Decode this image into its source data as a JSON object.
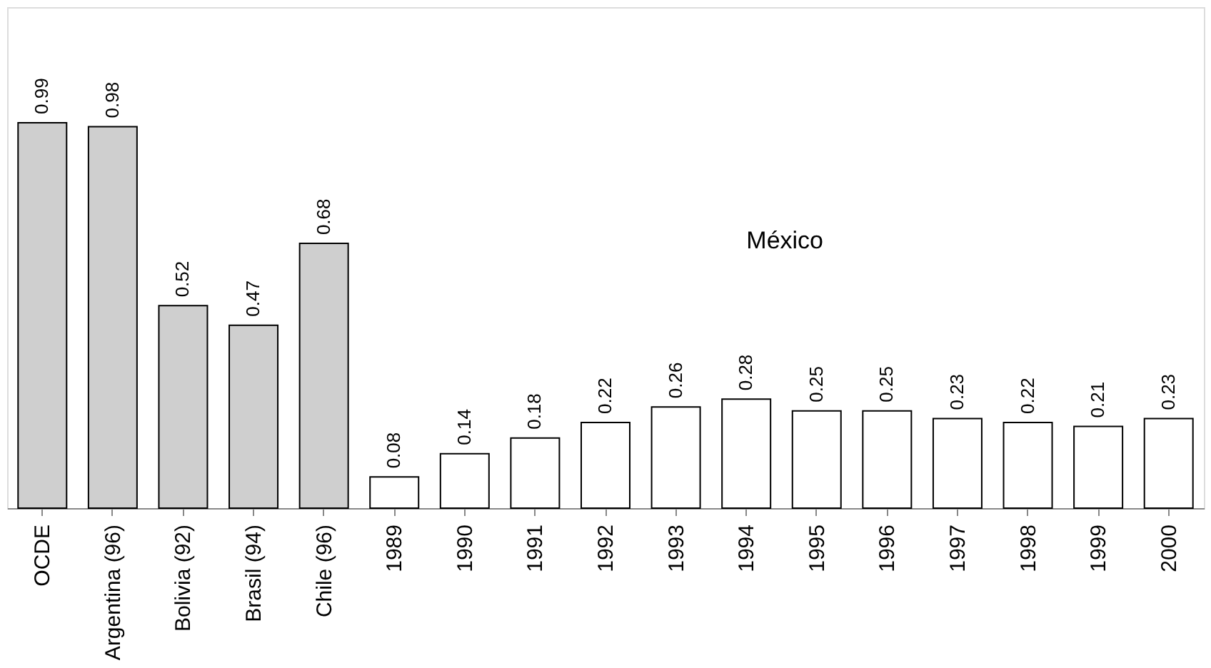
{
  "chart_data": {
    "type": "bar",
    "categories": [
      "OCDE",
      "Argentina (96)",
      "Bolivia (92)",
      "Brasil (94)",
      "Chile (96)",
      "1989",
      "1990",
      "1991",
      "1992",
      "1993",
      "1994",
      "1995",
      "1996",
      "1997",
      "1998",
      "1999",
      "2000"
    ],
    "values": [
      0.99,
      0.98,
      0.52,
      0.47,
      0.68,
      0.08,
      0.14,
      0.18,
      0.22,
      0.26,
      0.28,
      0.25,
      0.25,
      0.23,
      0.22,
      0.21,
      0.23
    ],
    "colors": [
      "#cfcfcf",
      "#cfcfcf",
      "#cfcfcf",
      "#cfcfcf",
      "#cfcfcf",
      "#ffffff",
      "#ffffff",
      "#ffffff",
      "#ffffff",
      "#ffffff",
      "#ffffff",
      "#ffffff",
      "#ffffff",
      "#ffffff",
      "#ffffff",
      "#ffffff",
      "#ffffff"
    ],
    "data_labels": true,
    "annotations": [
      "México"
    ]
  }
}
